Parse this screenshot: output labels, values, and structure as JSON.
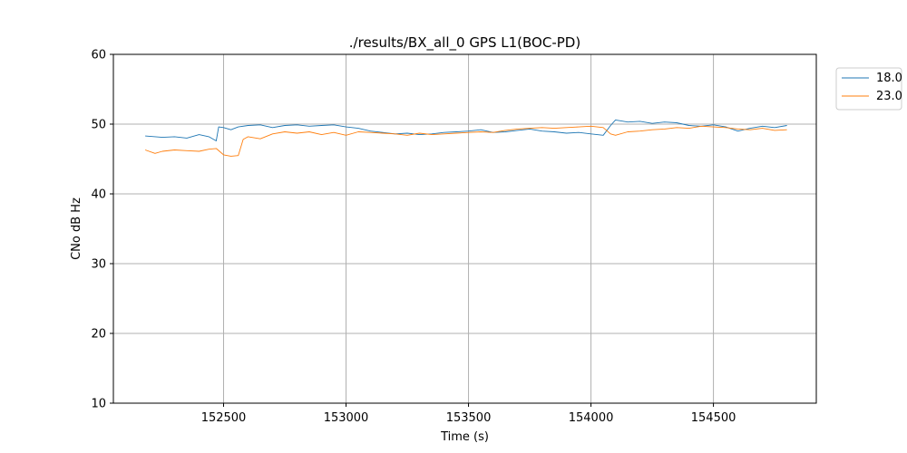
{
  "chart_data": {
    "type": "line",
    "title": "./results/BX_all_0 GPS L1(BOC-PD)",
    "xlabel": "Time (s)",
    "ylabel": "CNo dB Hz",
    "xlim": [
      152050,
      154920
    ],
    "ylim": [
      10,
      60
    ],
    "xticks": [
      152500,
      153000,
      153500,
      154000,
      154500
    ],
    "yticks": [
      10,
      20,
      30,
      40,
      50,
      60
    ],
    "grid": true,
    "legend_position": "outside-top-right",
    "series": [
      {
        "name": "18.0",
        "color": "#1f77b4",
        "x": [
          152180,
          152250,
          152300,
          152350,
          152400,
          152440,
          152470,
          152480,
          152500,
          152530,
          152560,
          152600,
          152650,
          152700,
          152750,
          152800,
          152850,
          152900,
          152950,
          153000,
          153050,
          153100,
          153150,
          153200,
          153250,
          153300,
          153350,
          153400,
          153450,
          153500,
          153550,
          153600,
          153650,
          153700,
          153750,
          153800,
          153850,
          153900,
          153950,
          154000,
          154050,
          154080,
          154100,
          154150,
          154200,
          154250,
          154300,
          154350,
          154400,
          154450,
          154500,
          154550,
          154600,
          154650,
          154700,
          154750,
          154800
        ],
        "y": [
          48.3,
          48.1,
          48.2,
          48.0,
          48.5,
          48.2,
          47.6,
          49.6,
          49.5,
          49.2,
          49.6,
          49.8,
          49.9,
          49.5,
          49.8,
          49.9,
          49.7,
          49.8,
          49.9,
          49.6,
          49.4,
          49.0,
          48.8,
          48.6,
          48.7,
          48.5,
          48.6,
          48.8,
          48.9,
          49.0,
          49.2,
          48.8,
          48.9,
          49.1,
          49.3,
          49.0,
          48.9,
          48.7,
          48.8,
          48.6,
          48.4,
          49.8,
          50.6,
          50.3,
          50.4,
          50.1,
          50.3,
          50.2,
          49.8,
          49.7,
          49.9,
          49.6,
          49.0,
          49.4,
          49.7,
          49.5,
          49.8
        ]
      },
      {
        "name": "23.0",
        "color": "#ff7f0e",
        "x": [
          152180,
          152220,
          152250,
          152300,
          152350,
          152400,
          152440,
          152470,
          152500,
          152530,
          152560,
          152580,
          152600,
          152650,
          152700,
          152750,
          152800,
          152850,
          152900,
          152950,
          153000,
          153050,
          153100,
          153150,
          153200,
          153250,
          153300,
          153350,
          153400,
          153450,
          153500,
          153550,
          153600,
          153650,
          153700,
          153750,
          153800,
          153850,
          153900,
          153950,
          154000,
          154050,
          154080,
          154100,
          154150,
          154200,
          154250,
          154300,
          154350,
          154400,
          154450,
          154500,
          154550,
          154600,
          154650,
          154700,
          154750,
          154800
        ],
        "y": [
          46.3,
          45.8,
          46.1,
          46.3,
          46.2,
          46.1,
          46.4,
          46.5,
          45.6,
          45.4,
          45.5,
          47.8,
          48.2,
          47.9,
          48.6,
          48.9,
          48.7,
          48.9,
          48.5,
          48.8,
          48.4,
          48.9,
          48.8,
          48.7,
          48.6,
          48.4,
          48.7,
          48.5,
          48.6,
          48.7,
          48.8,
          48.9,
          48.8,
          49.1,
          49.3,
          49.4,
          49.5,
          49.4,
          49.5,
          49.6,
          49.7,
          49.5,
          48.6,
          48.4,
          48.9,
          49.0,
          49.2,
          49.3,
          49.5,
          49.4,
          49.7,
          49.6,
          49.5,
          49.3,
          49.2,
          49.4,
          49.1,
          49.2
        ]
      }
    ]
  }
}
